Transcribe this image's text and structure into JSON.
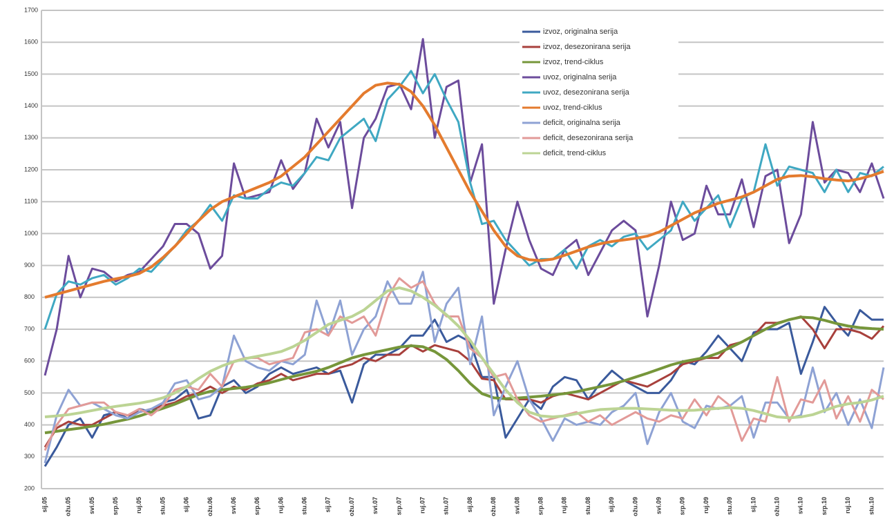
{
  "chart_data": {
    "type": "line",
    "categories": [
      "sij.05",
      null,
      "ožu.05",
      null,
      "svi.05",
      null,
      "srp.05",
      null,
      "ruj.05",
      null,
      "stu.05",
      null,
      "sij.06",
      null,
      "ožu.06",
      null,
      "svi.06",
      null,
      "srp.06",
      null,
      "ruj.06",
      null,
      "stu.06",
      null,
      "sij.07",
      null,
      "ožu.07",
      null,
      "svi.07",
      null,
      "srp.07",
      null,
      "ruj.07",
      null,
      "stu.07",
      null,
      "sij.08",
      null,
      "ožu.08",
      null,
      "svi.08",
      null,
      "srp.08",
      null,
      "ruj.08",
      null,
      "stu.08",
      null,
      "sij.09",
      null,
      "ožu.09",
      null,
      "svi.09",
      null,
      "srp.09",
      null,
      "ruj.09",
      null,
      "stu.09",
      null,
      "sij.10",
      null,
      "ožu.10",
      null,
      "svi.10",
      null,
      "srp.10",
      null,
      "ruj.10",
      null,
      "stu.10",
      null
    ],
    "ylim": [
      200,
      1700
    ],
    "yticks": [
      200,
      300,
      400,
      500,
      600,
      700,
      800,
      900,
      1000,
      1100,
      1200,
      1300,
      1400,
      1500,
      1600,
      1700
    ],
    "grid": true,
    "legend": "top-right",
    "series": [
      {
        "name": "izvoz, originalna serija",
        "color": "#3a5a9c",
        "values": [
          270,
          330,
          400,
          420,
          360,
          430,
          440,
          420,
          450,
          440,
          470,
          480,
          510,
          420,
          430,
          520,
          540,
          500,
          520,
          560,
          580,
          560,
          570,
          580,
          560,
          570,
          470,
          590,
          620,
          620,
          640,
          680,
          680,
          730,
          660,
          680,
          660,
          550,
          550,
          360,
          420,
          480,
          450,
          520,
          550,
          540,
          480,
          530,
          570,
          540,
          520,
          500,
          500,
          540,
          600,
          590,
          630,
          680,
          640,
          600,
          690,
          700,
          700,
          720,
          560,
          660,
          770,
          720,
          680,
          760,
          730,
          730
        ]
      },
      {
        "name": "izvoz, desezonirana serija",
        "color": "#a8403c",
        "values": [
          330,
          390,
          410,
          400,
          400,
          420,
          440,
          430,
          440,
          450,
          460,
          470,
          490,
          500,
          520,
          500,
          520,
          510,
          530,
          540,
          560,
          540,
          550,
          560,
          560,
          580,
          590,
          610,
          600,
          620,
          620,
          650,
          630,
          650,
          640,
          630,
          600,
          545,
          540,
          480,
          480,
          480,
          470,
          490,
          500,
          490,
          480,
          500,
          520,
          540,
          530,
          520,
          540,
          560,
          590,
          600,
          610,
          610,
          650,
          660,
          680,
          720,
          720,
          730,
          740,
          700,
          640,
          700,
          700,
          690,
          670,
          710
        ]
      },
      {
        "name": "izvoz, trend-ciklus",
        "color": "#76963a",
        "values": [
          375,
          380,
          385,
          390,
          396,
          402,
          410,
          418,
          428,
          440,
          452,
          465,
          480,
          495,
          505,
          510,
          514,
          518,
          524,
          532,
          542,
          552,
          560,
          568,
          580,
          595,
          610,
          620,
          628,
          636,
          644,
          648,
          645,
          630,
          605,
          570,
          530,
          498,
          485,
          482,
          484,
          487,
          490,
          494,
          498,
          504,
          512,
          520,
          528,
          538,
          550,
          562,
          575,
          588,
          598,
          605,
          612,
          625,
          642,
          660,
          680,
          700,
          718,
          730,
          738,
          736,
          728,
          718,
          710,
          705,
          702,
          700
        ]
      },
      {
        "name": "uvoz, originalna serija",
        "color": "#6c4c9c",
        "values": [
          555,
          700,
          930,
          800,
          890,
          880,
          850,
          870,
          880,
          920,
          960,
          1030,
          1030,
          1000,
          890,
          930,
          1220,
          1110,
          1120,
          1130,
          1230,
          1140,
          1190,
          1360,
          1270,
          1350,
          1080,
          1300,
          1360,
          1460,
          1470,
          1390,
          1610,
          1300,
          1460,
          1480,
          1160,
          1280,
          780,
          950,
          1100,
          980,
          890,
          870,
          950,
          980,
          870,
          940,
          1010,
          1040,
          1010,
          740,
          900,
          1100,
          980,
          1000,
          1150,
          1060,
          1060,
          1170,
          1020,
          1180,
          1200,
          970,
          1060,
          1350,
          1160,
          1200,
          1190,
          1130,
          1220,
          1110
        ]
      },
      {
        "name": "uvoz, desezonirana serija",
        "color": "#3fa8c2",
        "values": [
          700,
          810,
          850,
          840,
          860,
          870,
          840,
          860,
          890,
          880,
          920,
          960,
          1010,
          1040,
          1090,
          1040,
          1120,
          1110,
          1110,
          1140,
          1160,
          1150,
          1190,
          1240,
          1230,
          1300,
          1330,
          1360,
          1290,
          1420,
          1460,
          1510,
          1440,
          1500,
          1420,
          1350,
          1160,
          1030,
          1040,
          980,
          940,
          900,
          920,
          920,
          950,
          890,
          960,
          980,
          960,
          990,
          1000,
          950,
          980,
          1010,
          1100,
          1040,
          1080,
          1120,
          1020,
          1110,
          1130,
          1280,
          1150,
          1210,
          1200,
          1190,
          1130,
          1200,
          1130,
          1190,
          1180,
          1210
        ]
      },
      {
        "name": "uvoz, trend-ciklus",
        "color": "#e47b2e",
        "values": [
          800,
          810,
          820,
          830,
          840,
          850,
          858,
          865,
          875,
          895,
          925,
          960,
          1000,
          1040,
          1075,
          1100,
          1115,
          1130,
          1145,
          1160,
          1180,
          1210,
          1240,
          1280,
          1320,
          1360,
          1400,
          1440,
          1465,
          1472,
          1468,
          1445,
          1400,
          1340,
          1270,
          1200,
          1130,
          1070,
          1010,
          960,
          930,
          918,
          915,
          920,
          932,
          945,
          958,
          968,
          975,
          980,
          985,
          992,
          1005,
          1025,
          1045,
          1065,
          1080,
          1095,
          1105,
          1115,
          1130,
          1150,
          1170,
          1180,
          1182,
          1178,
          1172,
          1168,
          1165,
          1172,
          1182,
          1195
        ]
      },
      {
        "name": "deficit, originalna serija",
        "color": "#8ea2d4",
        "values": [
          280,
          430,
          510,
          460,
          470,
          450,
          430,
          420,
          440,
          450,
          470,
          530,
          540,
          480,
          490,
          520,
          680,
          600,
          580,
          570,
          600,
          590,
          620,
          790,
          680,
          790,
          620,
          700,
          740,
          850,
          780,
          780,
          880,
          660,
          780,
          830,
          590,
          740,
          430,
          520,
          600,
          480,
          420,
          350,
          420,
          400,
          410,
          400,
          440,
          460,
          500,
          340,
          440,
          500,
          410,
          390,
          460,
          450,
          460,
          490,
          360,
          470,
          470,
          420,
          430,
          580,
          440,
          500,
          400,
          480,
          390,
          580
        ]
      },
      {
        "name": "deficit, desezonirana serija",
        "color": "#e29a98",
        "values": [
          320,
          400,
          450,
          460,
          470,
          470,
          440,
          430,
          450,
          430,
          460,
          510,
          520,
          510,
          560,
          520,
          600,
          610,
          610,
          590,
          600,
          610,
          690,
          700,
          680,
          740,
          720,
          740,
          680,
          800,
          860,
          830,
          850,
          780,
          740,
          740,
          640,
          610,
          550,
          560,
          480,
          430,
          410,
          420,
          430,
          440,
          410,
          430,
          400,
          420,
          440,
          420,
          410,
          430,
          420,
          480,
          430,
          490,
          460,
          350,
          420,
          410,
          550,
          410,
          480,
          470,
          540,
          420,
          490,
          410,
          510,
          480
        ]
      },
      {
        "name": "deficit, trend-ciklus",
        "color": "#bcd494",
        "values": [
          425,
          428,
          432,
          438,
          445,
          452,
          458,
          463,
          468,
          475,
          485,
          500,
          520,
          545,
          568,
          585,
          598,
          608,
          615,
          622,
          630,
          645,
          665,
          690,
          715,
          728,
          740,
          760,
          790,
          820,
          830,
          820,
          800,
          775,
          745,
          710,
          665,
          610,
          560,
          510,
          470,
          440,
          428,
          425,
          428,
          435,
          442,
          448,
          450,
          452,
          452,
          450,
          448,
          446,
          445,
          446,
          449,
          452,
          454,
          452,
          445,
          435,
          425,
          422,
          425,
          432,
          445,
          458,
          466,
          470,
          478,
          490
        ]
      }
    ]
  }
}
